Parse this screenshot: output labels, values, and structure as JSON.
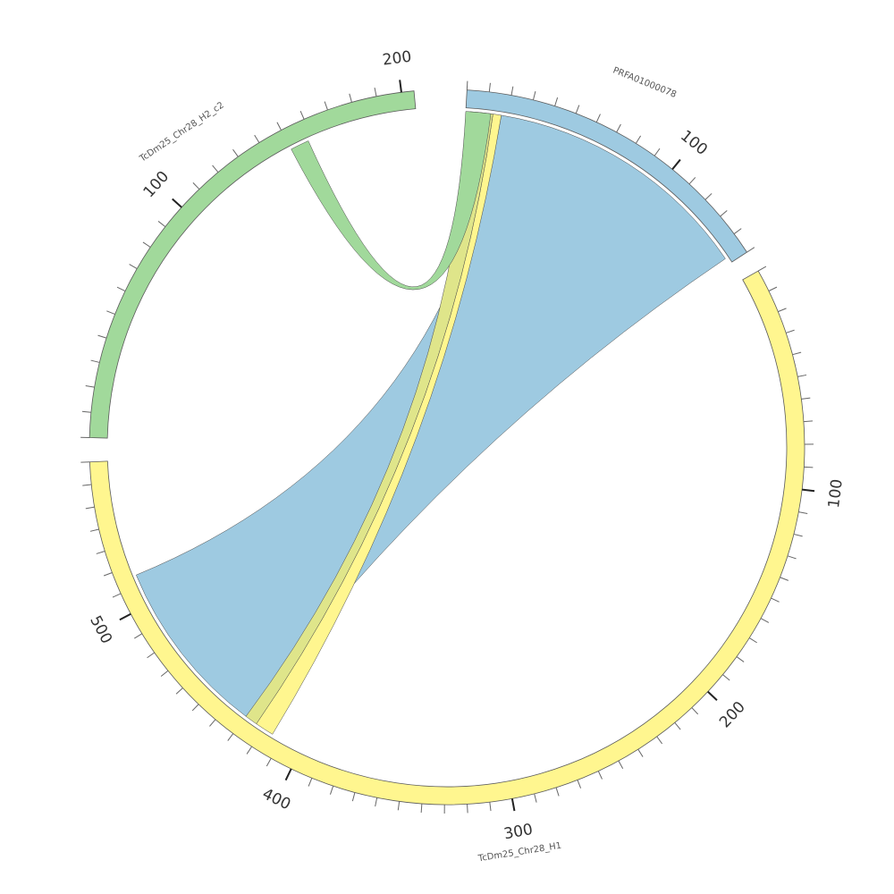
{
  "diagram": {
    "type": "circos",
    "scale_unit": "",
    "tick_minor_interval": 10,
    "tick_major_interval": 100,
    "sequences": [
      {
        "id": "h1",
        "name": "TcDm25_Chr28_H1",
        "length": 570,
        "color": "#fff68f",
        "major_ticks": [
          "100",
          "200",
          "300",
          "400",
          "500"
        ]
      },
      {
        "id": "h2",
        "name": "TcDm25_Chr28_H2_c2",
        "length": 205,
        "color": "#a1d99b",
        "major_ticks": [
          "100",
          "200"
        ]
      },
      {
        "id": "prfa",
        "name": "PRFA01000078",
        "length": 150,
        "color": "#9ecae1",
        "major_ticks": [
          "100"
        ]
      }
    ],
    "links": [
      {
        "color": "#9ecae1",
        "a": {
          "seq": "prfa",
          "start": 17,
          "end": 147
        },
        "b": {
          "seq": "h1",
          "start": 430,
          "end": 515
        }
      },
      {
        "color": "#fff68f",
        "a": {
          "seq": "prfa",
          "start": 13,
          "end": 17
        },
        "b": {
          "seq": "h1",
          "start": 415,
          "end": 424
        }
      },
      {
        "color": "#dfe58a",
        "a": {
          "seq": "prfa",
          "start": 2,
          "end": 13
        },
        "b": {
          "seq": "h1",
          "start": 424,
          "end": 430
        }
      },
      {
        "color": "#a1d99b",
        "a": {
          "seq": "h2",
          "start": 150,
          "end": 158
        },
        "b": {
          "seq": "prfa",
          "start": 0,
          "end": 12
        }
      }
    ]
  }
}
